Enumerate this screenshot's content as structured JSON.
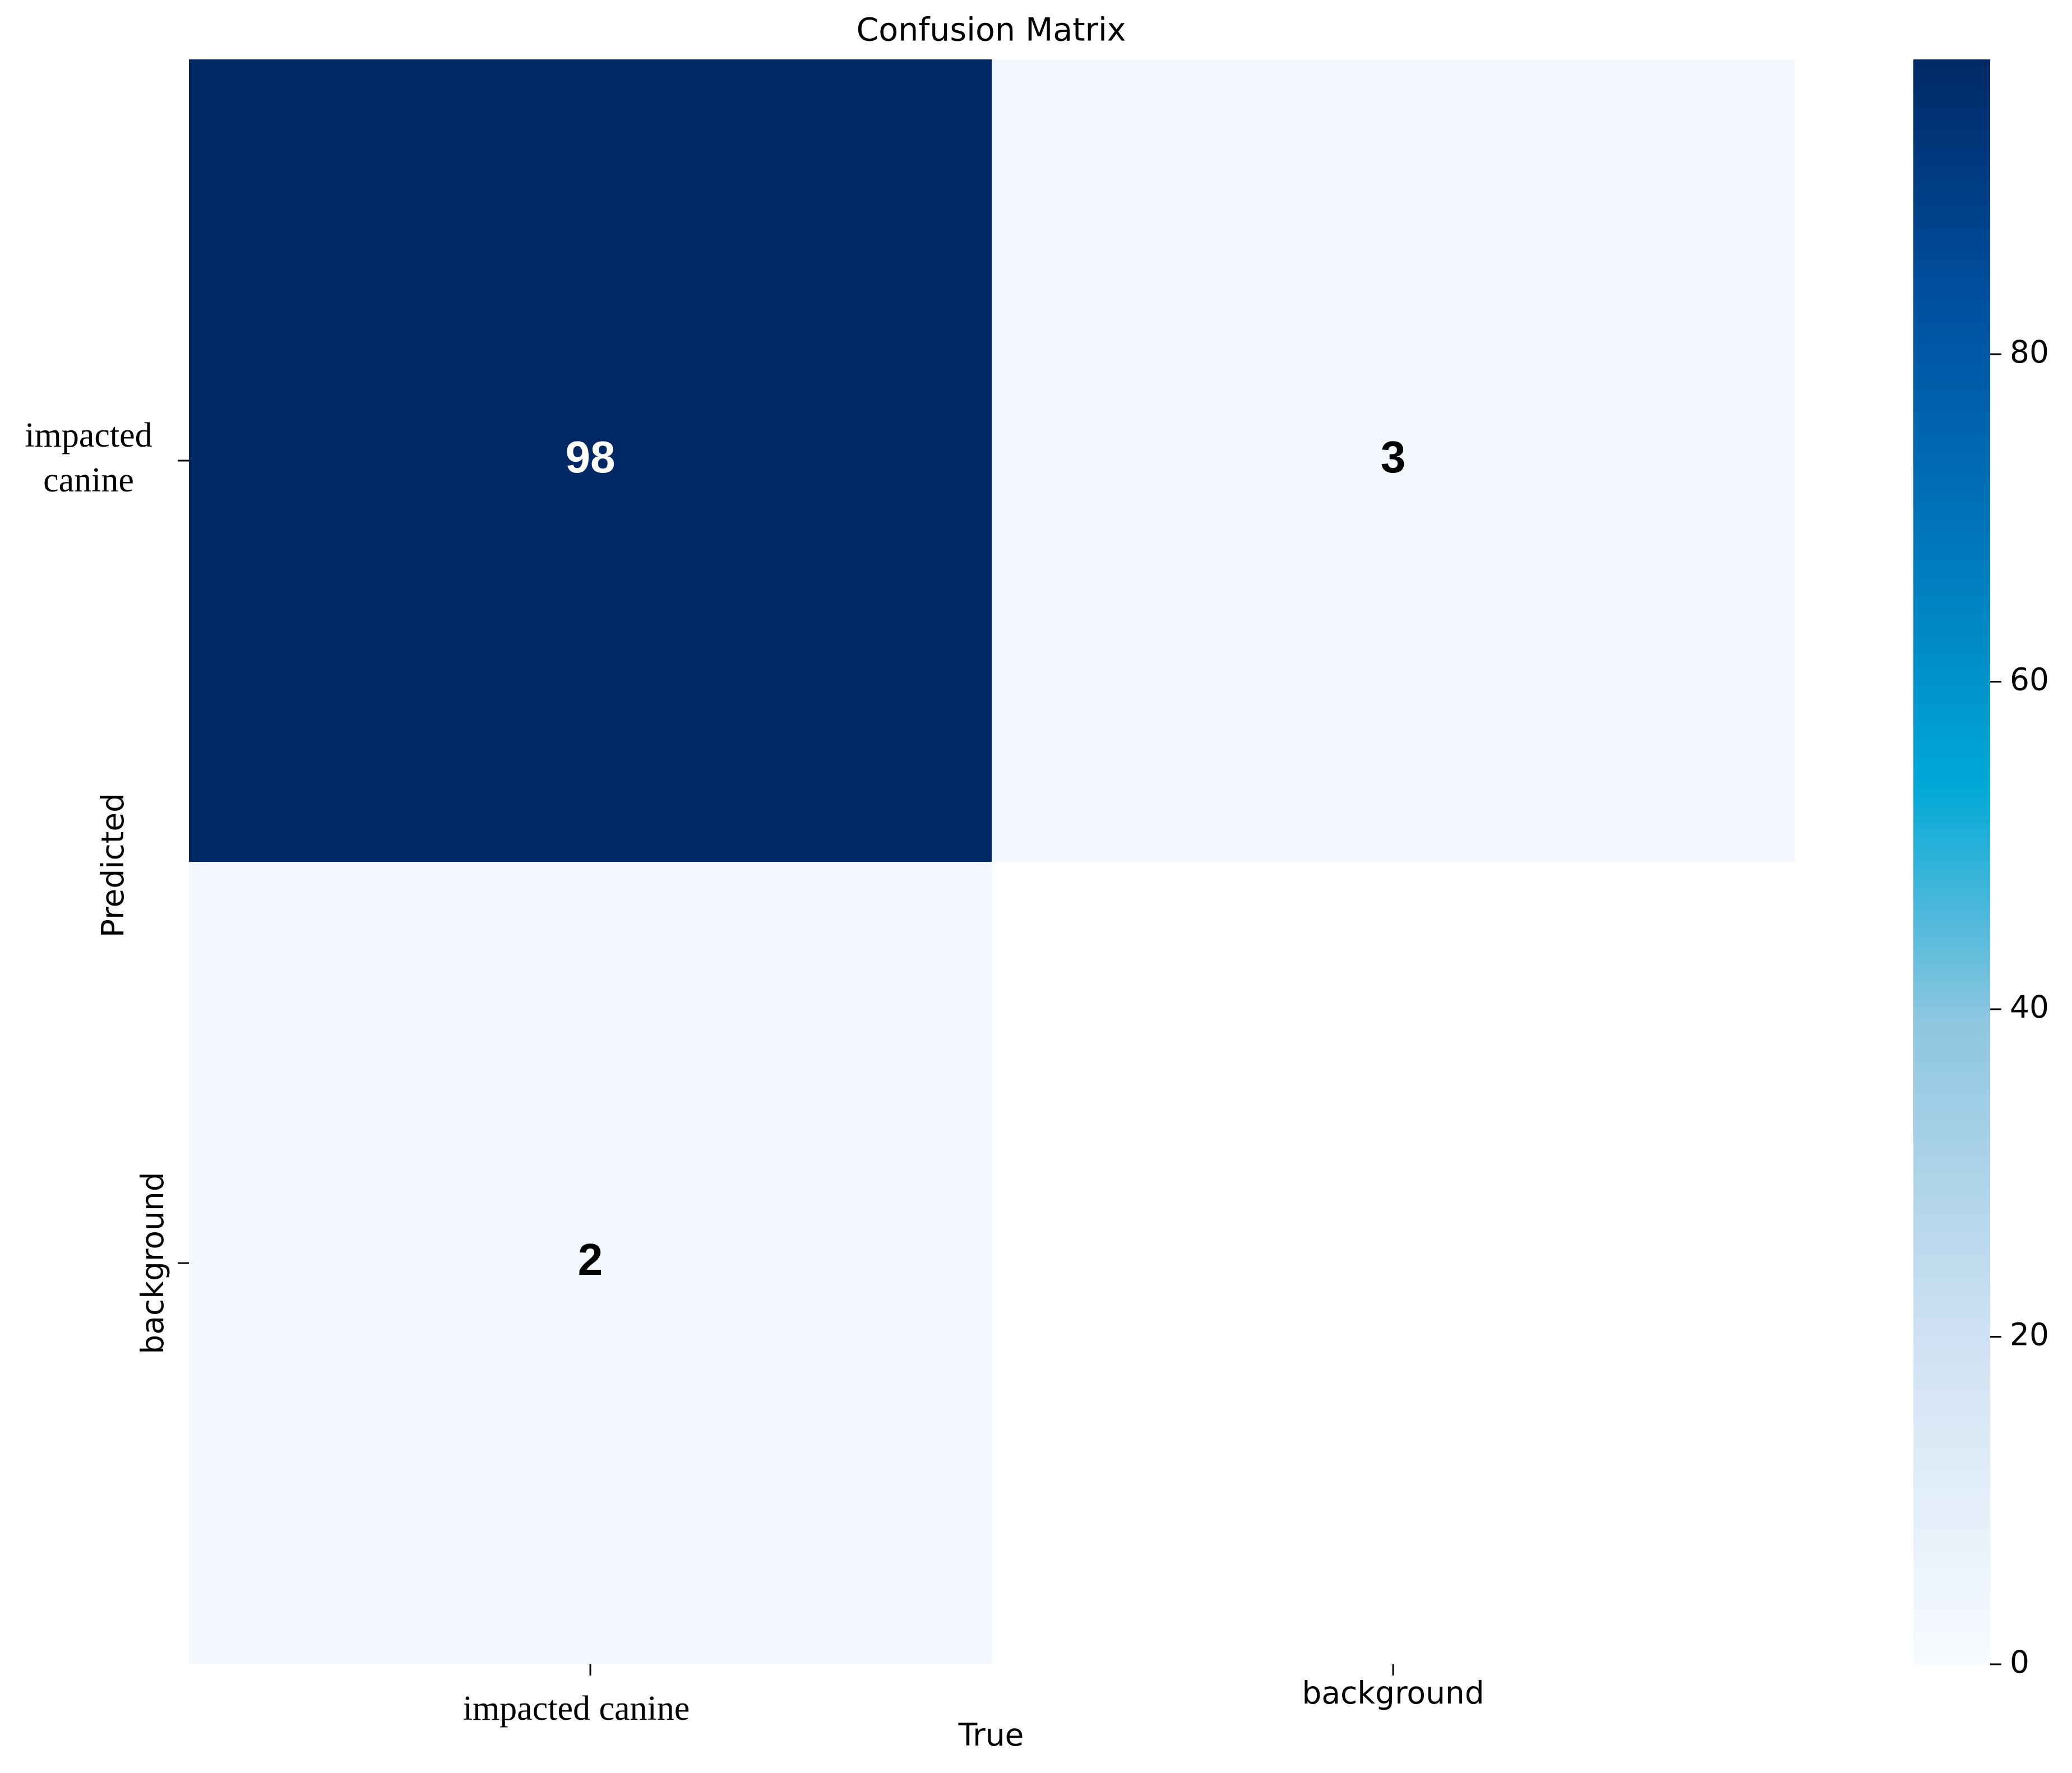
{
  "chart_data": {
    "type": "heatmap",
    "title": "Confusion Matrix",
    "x_label": "True",
    "y_label": "Predicted",
    "x_categories": [
      "impacted canine",
      "background"
    ],
    "y_categories": [
      "impacted canine",
      "background"
    ],
    "values": [
      [
        98,
        3
      ],
      [
        2,
        null
      ]
    ],
    "colormap": "Blues",
    "clim": [
      0,
      98
    ],
    "cbar_ticks": [
      0,
      20,
      40,
      60,
      80
    ]
  }
}
